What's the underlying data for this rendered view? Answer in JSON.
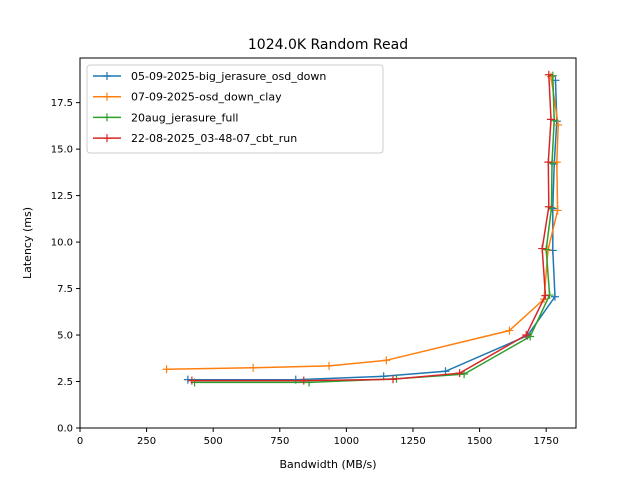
{
  "chart_data": {
    "type": "line",
    "title": "1024.0K  Random Read",
    "xlabel": "Bandwidth (MB/s)",
    "ylabel": "Latency (ms)",
    "xlim": [
      0,
      1862
    ],
    "ylim": [
      0,
      19.9
    ],
    "xticks": [
      0,
      250,
      500,
      750,
      1000,
      1250,
      1500,
      1750
    ],
    "yticks": [
      0.0,
      2.5,
      5.0,
      7.5,
      10.0,
      12.5,
      15.0,
      17.5
    ],
    "grid": false,
    "legend_position": "top-left",
    "marker": "+",
    "series": [
      {
        "name": "05-09-2025-big_jerasure_osd_down",
        "color": "#1f77b4",
        "points": [
          [
            405,
            2.6
          ],
          [
            810,
            2.6
          ],
          [
            1140,
            2.78
          ],
          [
            1372,
            3.05
          ],
          [
            1680,
            4.97
          ],
          [
            1783,
            7.06
          ],
          [
            1775,
            9.55
          ],
          [
            1775,
            11.8
          ],
          [
            1780,
            14.2
          ],
          [
            1790,
            16.5
          ],
          [
            1785,
            18.7
          ]
        ]
      },
      {
        "name": "07-09-2025-osd_down_clay",
        "color": "#ff7f0e",
        "points": [
          [
            325,
            3.16
          ],
          [
            650,
            3.24
          ],
          [
            935,
            3.34
          ],
          [
            1150,
            3.64
          ],
          [
            1612,
            5.24
          ],
          [
            1742,
            6.93
          ],
          [
            1757,
            9.58
          ],
          [
            1793,
            11.7
          ],
          [
            1790,
            14.3
          ],
          [
            1795,
            16.3
          ],
          [
            1768,
            18.9
          ]
        ]
      },
      {
        "name": "20aug_jerasure_full",
        "color": "#2ca02c",
        "points": [
          [
            430,
            2.45
          ],
          [
            860,
            2.45
          ],
          [
            1188,
            2.65
          ],
          [
            1442,
            2.9
          ],
          [
            1690,
            4.92
          ],
          [
            1763,
            7.15
          ],
          [
            1750,
            9.6
          ],
          [
            1770,
            11.85
          ],
          [
            1772,
            14.25
          ],
          [
            1780,
            16.55
          ],
          [
            1775,
            18.95
          ]
        ]
      },
      {
        "name": "22-08-2025_03-48-07_cbt_run",
        "color": "#d62728",
        "points": [
          [
            420,
            2.55
          ],
          [
            840,
            2.55
          ],
          [
            1175,
            2.62
          ],
          [
            1425,
            2.95
          ],
          [
            1675,
            5.0
          ],
          [
            1747,
            7.12
          ],
          [
            1735,
            9.65
          ],
          [
            1760,
            11.9
          ],
          [
            1758,
            14.3
          ],
          [
            1768,
            16.6
          ],
          [
            1760,
            19.0
          ]
        ]
      }
    ]
  }
}
